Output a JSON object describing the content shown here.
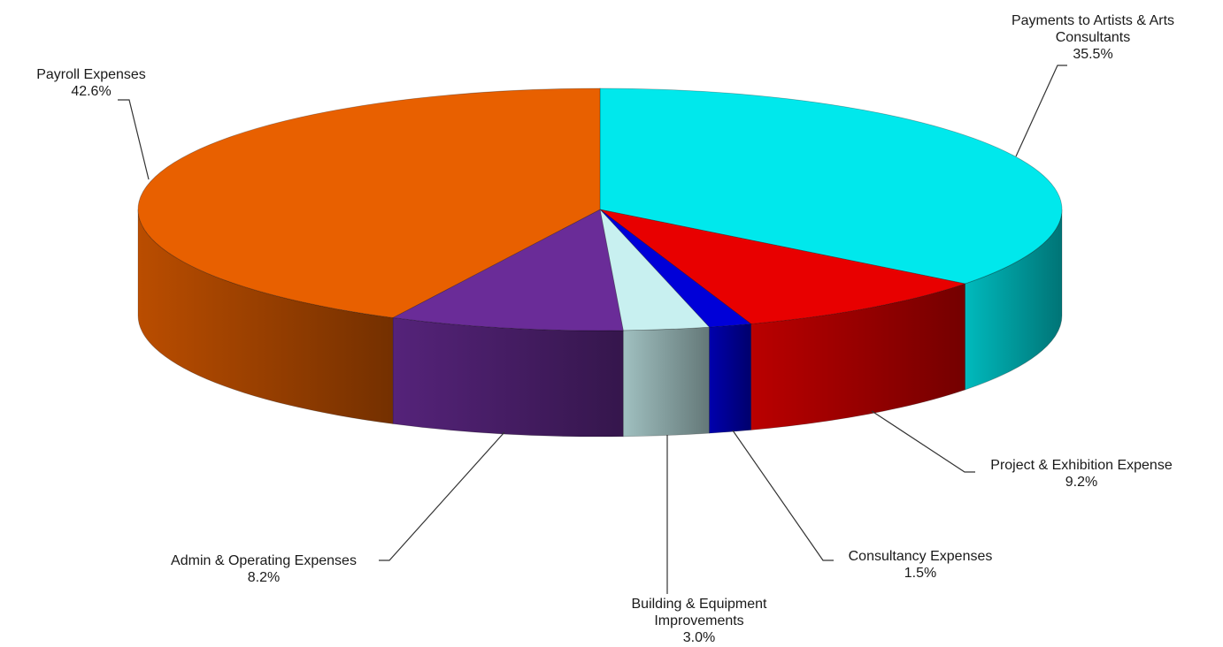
{
  "chart_data": {
    "type": "pie",
    "title": "",
    "slices": [
      {
        "label": "Payments to Artists & Arts Consultants",
        "label_lines": [
          "Payments to Artists & Arts",
          "Consultants"
        ],
        "value_label": "35.5%",
        "value": 35.5,
        "color": "#00e8ec"
      },
      {
        "label": "Project & Exhibition Expenses",
        "label_lines": [
          "Project & Exhibition Expense"
        ],
        "value_label": "9.2%",
        "value": 9.2,
        "color": "#e80000"
      },
      {
        "label": "Consultancy Expenses",
        "label_lines": [
          "Consultancy Expenses"
        ],
        "value_label": "1.5%",
        "value": 1.5,
        "color": "#0000d8"
      },
      {
        "label": "Building & Equipment Improvements",
        "label_lines": [
          "Building & Equipment",
          "Improvements"
        ],
        "value_label": "3.0%",
        "value": 3.0,
        "color": "#c8f0f0"
      },
      {
        "label": "Admin & Operating Expenses",
        "label_lines": [
          "Admin & Operating Expenses"
        ],
        "value_label": "8.2%",
        "value": 8.2,
        "color": "#6a2c98"
      },
      {
        "label": "Payroll Expenses",
        "label_lines": [
          "Payroll Expenses"
        ],
        "value_label": "42.6%",
        "value": 42.6,
        "color": "#e86000"
      }
    ],
    "start_angle_deg": 90,
    "direction": "clockwise",
    "style": "3d-tilted"
  }
}
